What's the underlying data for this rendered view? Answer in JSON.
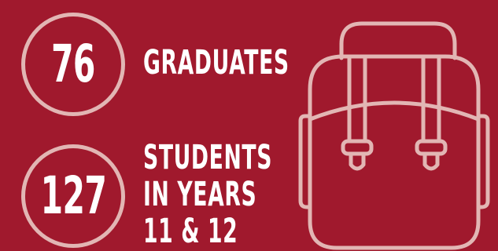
{
  "stats": [
    {
      "value": "76",
      "label_lines": [
        "GRADUATES"
      ]
    },
    {
      "value": "127",
      "label_lines": [
        "STUDENTS",
        "IN YEARS",
        "11 & 12"
      ]
    }
  ],
  "colors": {
    "background": "#a0192d",
    "accent": "#e2b6b4",
    "text": "#ffffff"
  },
  "illustration": {
    "icon": "backpack-icon"
  }
}
